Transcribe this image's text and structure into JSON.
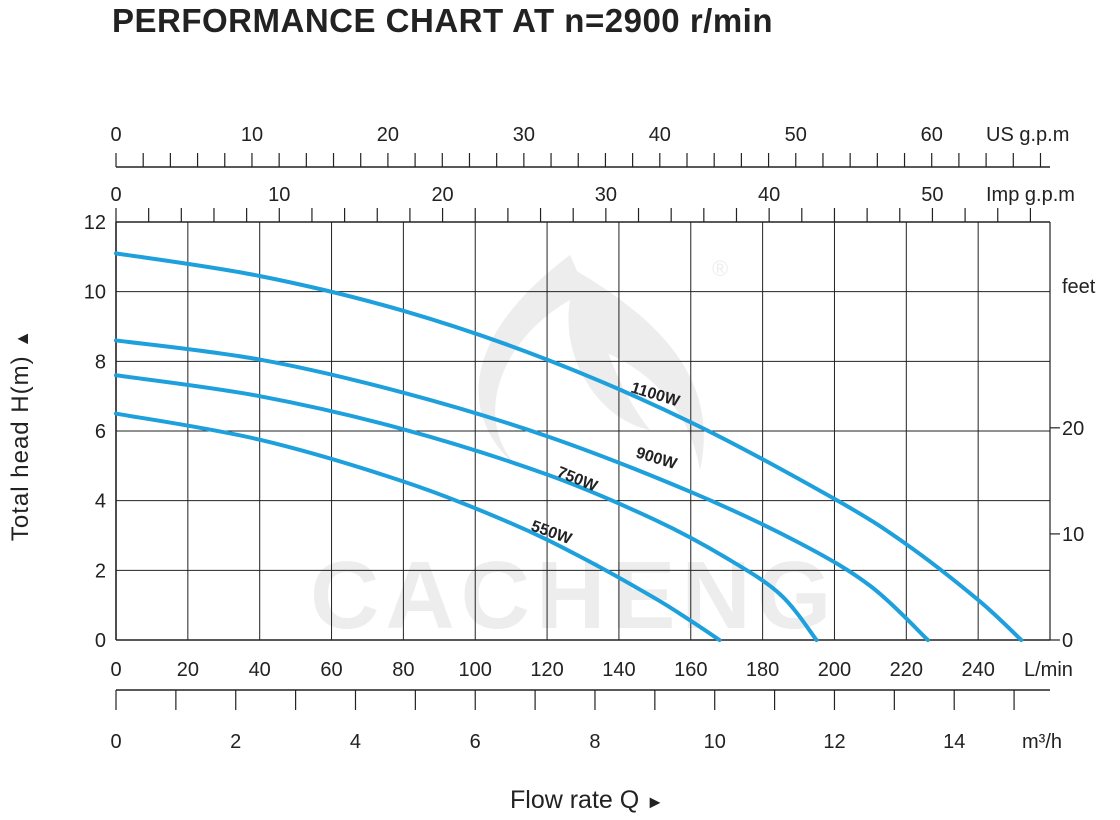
{
  "title": "PERFORMANCE CHART AT n=2900 r/min",
  "chart_data": {
    "type": "line",
    "title": "PERFORMANCE CHART AT n=2900 r/min",
    "ylabel": "Total head H(m)",
    "ylabel_arrow": "▲",
    "xlabel": "Flow rate Q",
    "xlabel_arrow": "►",
    "xlim": [
      0,
      260
    ],
    "ylim": [
      0,
      12
    ],
    "grid": true,
    "x_unit": "L/min",
    "x_ticks": [
      0,
      20,
      40,
      60,
      80,
      100,
      120,
      140,
      160,
      180,
      200,
      220,
      240
    ],
    "y_ticks": [
      0,
      2,
      4,
      6,
      8,
      10,
      12
    ],
    "top_axes": [
      {
        "unit": "US g.p.m",
        "ticks": [
          0,
          10,
          20,
          30,
          40,
          50,
          60
        ],
        "minor_step": 2,
        "max": 68.7
      },
      {
        "unit": "Imp g.p.m",
        "ticks": [
          0,
          10,
          20,
          30,
          40,
          50
        ],
        "minor_step": 2,
        "max": 57.2
      }
    ],
    "bottom_axis": {
      "unit": "m³/h",
      "ticks": [
        0,
        2,
        4,
        6,
        8,
        10,
        12,
        14
      ],
      "minor_step": 1,
      "max": 15.6
    },
    "right_axis": {
      "unit": "feet",
      "ticks": [
        0,
        10,
        20
      ],
      "max": 39.4
    },
    "series": [
      {
        "name": "1100W",
        "x": [
          0,
          40,
          80,
          120,
          160,
          200,
          220,
          240,
          252
        ],
        "y": [
          11.1,
          10.45,
          9.45,
          8.05,
          6.25,
          4.05,
          2.75,
          1.15,
          0
        ]
      },
      {
        "name": "900W",
        "x": [
          0,
          40,
          80,
          120,
          160,
          190,
          210,
          226
        ],
        "y": [
          8.6,
          8.05,
          7.1,
          5.85,
          4.25,
          2.8,
          1.55,
          0
        ]
      },
      {
        "name": "750W",
        "x": [
          0,
          40,
          80,
          120,
          150,
          170,
          185,
          195
        ],
        "y": [
          7.6,
          7.0,
          6.05,
          4.75,
          3.45,
          2.35,
          1.3,
          0
        ]
      },
      {
        "name": "550W",
        "x": [
          0,
          40,
          80,
          110,
          130,
          150,
          160,
          168
        ],
        "y": [
          6.5,
          5.75,
          4.55,
          3.35,
          2.35,
          1.2,
          0.55,
          0
        ]
      }
    ],
    "watermark": "CACHENG",
    "registered_mark": "®"
  },
  "colors": {
    "curve": "#1EA0DC",
    "grid": "#222222",
    "text": "#222222",
    "watermark": "#EDEDED"
  }
}
